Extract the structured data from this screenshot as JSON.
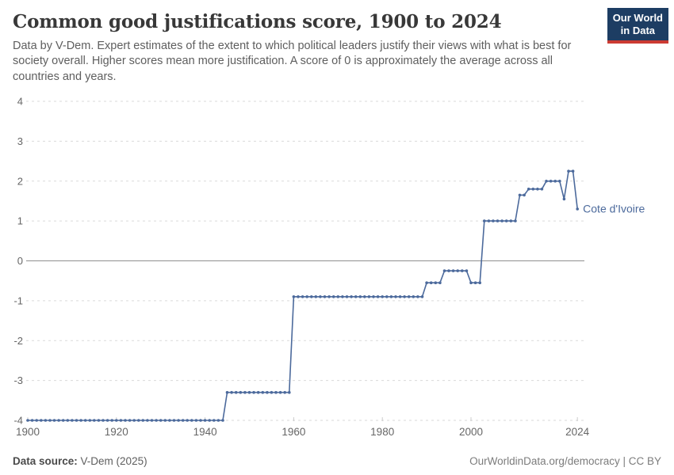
{
  "header": {
    "title": "Common good justifications score, 1900 to 2024",
    "subtitle": "Data by V-Dem. Expert estimates of the extent to which political leaders justify their views with what is best for society overall. Higher scores mean more justification. A score of 0 is approximately the average across all countries and years."
  },
  "logo": {
    "line1": "Our World",
    "line2": "in Data",
    "bg_color": "#1d3d63",
    "accent_color": "#cc3b33"
  },
  "chart_data": {
    "type": "line",
    "title": "Common good justifications score, 1900 to 2024",
    "entity": "Cote d'Ivoire",
    "series_color": "#4c6a9c",
    "xlabel": "",
    "ylabel": "",
    "xlim": [
      1900,
      2024
    ],
    "ylim": [
      -4,
      4
    ],
    "xticks": [
      1900,
      1920,
      1940,
      1960,
      1980,
      2000,
      2024
    ],
    "yticks": [
      4,
      3,
      2,
      1,
      0,
      -1,
      -2,
      -3,
      -4
    ],
    "grid": "dashed horizontal gridlines, solid line at zero, markers at every year",
    "segments": [
      {
        "from": 1900,
        "to": 1944,
        "value": -4.0
      },
      {
        "from": 1945,
        "to": 1959,
        "value": -3.3
      },
      {
        "from": 1960,
        "to": 1989,
        "value": -0.9
      },
      {
        "from": 1990,
        "to": 1993,
        "value": -0.55
      },
      {
        "from": 1994,
        "to": 1999,
        "value": -0.25
      },
      {
        "from": 2000,
        "to": 2002,
        "value": -0.55
      },
      {
        "from": 2003,
        "to": 2010,
        "value": 1.0
      },
      {
        "from": 2011,
        "to": 2012,
        "value": 1.65
      },
      {
        "from": 2013,
        "to": 2016,
        "value": 1.8
      },
      {
        "from": 2017,
        "to": 2020,
        "value": 2.0
      },
      {
        "from": 2021,
        "to": 2021,
        "value": 1.55
      },
      {
        "from": 2022,
        "to": 2023,
        "value": 2.25
      },
      {
        "from": 2024,
        "to": 2024,
        "value": 1.3
      }
    ]
  },
  "axis_colors": {
    "gridline": "#dadada",
    "zero_line": "#8f8f8f",
    "tick_label": "#666666",
    "tick_mark": "#cccccc"
  },
  "footer": {
    "source_label": "Data source:",
    "source_value": "V-Dem (2025)",
    "url": "OurWorldinData.org/democracy",
    "separator": " | ",
    "license": "CC BY"
  }
}
